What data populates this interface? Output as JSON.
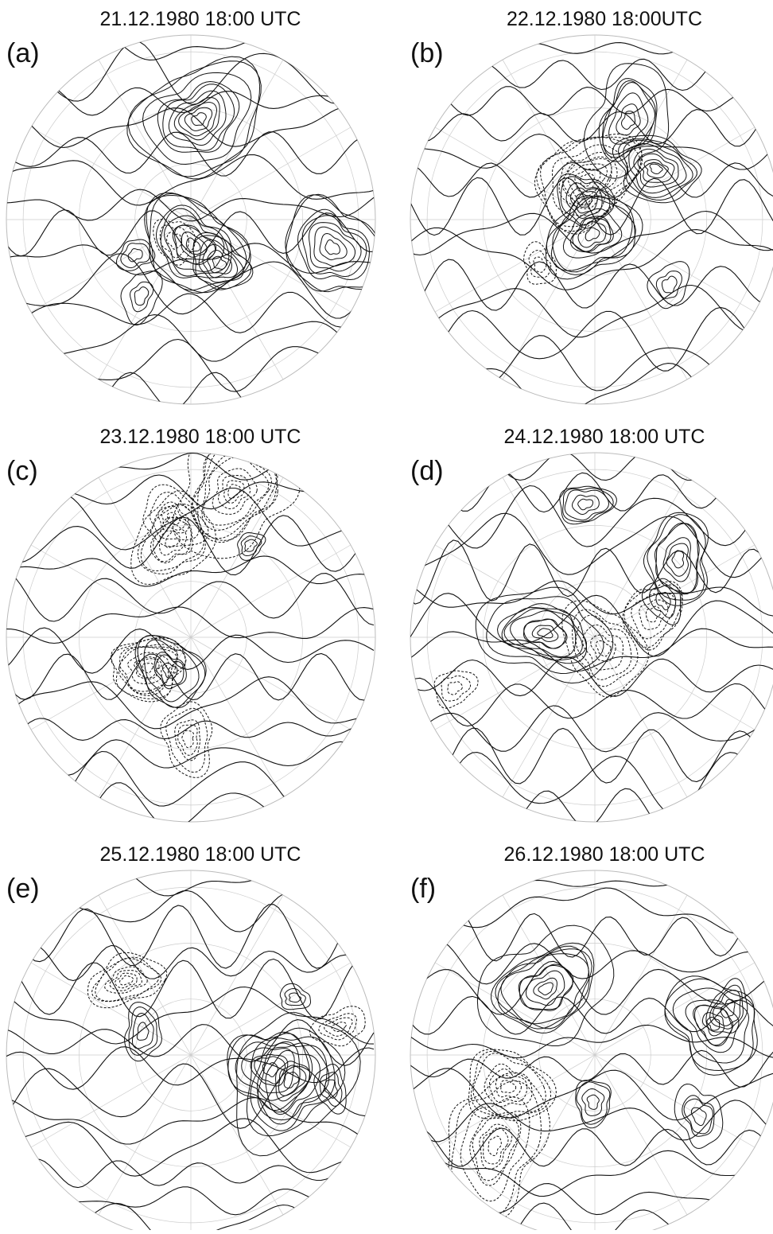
{
  "panels": [
    {
      "label": "(a)",
      "title": "21.12.1980 18:00 UTC"
    },
    {
      "label": "(b)",
      "title": "22.12.1980 18:00UTC"
    },
    {
      "label": "(c)",
      "title": "23.12.1980 18:00 UTC"
    },
    {
      "label": "(d)",
      "title": "24.12.1980 18:00 UTC"
    },
    {
      "label": "(e)",
      "title": "25.12.1980 18:00 UTC"
    },
    {
      "label": "(f)",
      "title": "26.12.1980 18:00 UTC"
    }
  ]
}
